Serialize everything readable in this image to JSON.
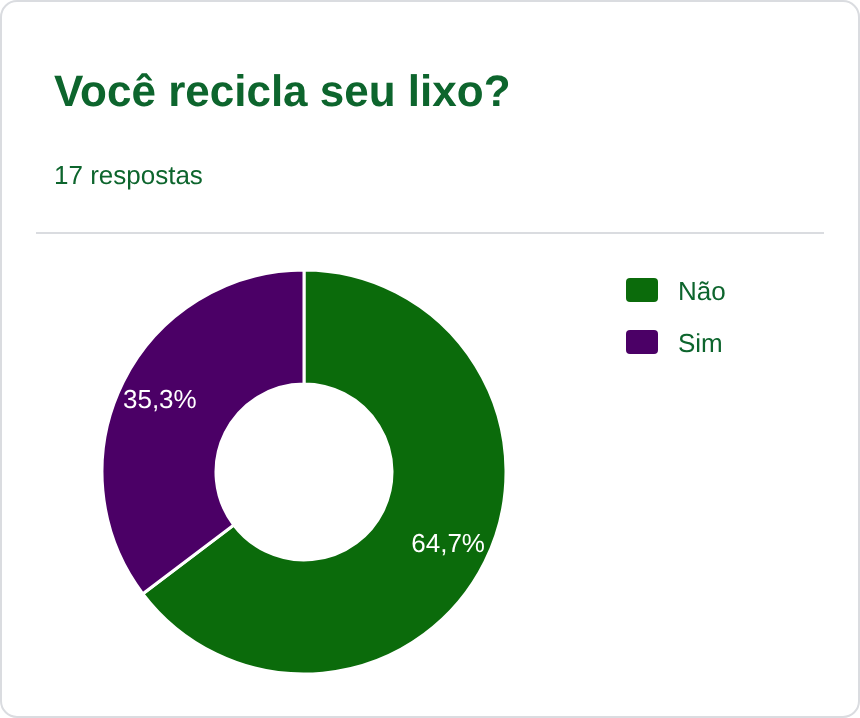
{
  "chart_data": {
    "type": "donut",
    "title": "Você recicla seu lixo?",
    "subtitle": "17 respostas",
    "categories": [
      "Não",
      "Sim"
    ],
    "values": [
      64.7,
      35.3
    ],
    "colors": [
      "#0b6b0b",
      "#4b0066"
    ],
    "value_labels": [
      "64,7%",
      "35,3%"
    ],
    "legend": "right"
  }
}
